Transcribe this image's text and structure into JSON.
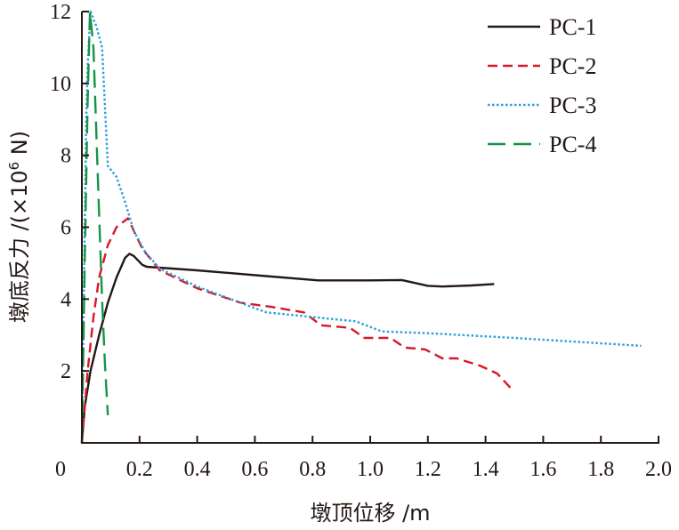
{
  "chart_data": {
    "type": "line",
    "title": "",
    "xlabel": "墩顶位移 /m",
    "ylabel": "墩底反力 /(×10⁶ N)",
    "ylabel_parts": {
      "main": "墩底反力 /(×10",
      "sup": "6",
      "unit": " N)"
    },
    "xlim": [
      0,
      2.0
    ],
    "ylim": [
      0,
      12
    ],
    "xticks": [
      0,
      0.2,
      0.4,
      0.6,
      0.8,
      1.0,
      1.2,
      1.4,
      1.6,
      1.8,
      2.0
    ],
    "xtick_labels": [
      "0",
      "0.2",
      "0.4",
      "0.6",
      "0.8",
      "1.0",
      "1.2",
      "1.4",
      "1.6",
      "1.8",
      "2.0"
    ],
    "yticks": [
      2,
      4,
      6,
      8,
      10,
      12
    ],
    "ytick_labels": [
      "2",
      "4",
      "6",
      "8",
      "10",
      "12"
    ],
    "grid": false,
    "legend_position": "top-right",
    "series": [
      {
        "name": "PC-1",
        "color": "#231815",
        "style": "solid",
        "points": [
          [
            0,
            0
          ],
          [
            0.01,
            1.0
          ],
          [
            0.03,
            2.0
          ],
          [
            0.06,
            3.0
          ],
          [
            0.09,
            3.9
          ],
          [
            0.12,
            4.6
          ],
          [
            0.15,
            5.15
          ],
          [
            0.165,
            5.26
          ],
          [
            0.18,
            5.2
          ],
          [
            0.21,
            4.95
          ],
          [
            0.225,
            4.9
          ],
          [
            0.4,
            4.8
          ],
          [
            0.64,
            4.64
          ],
          [
            0.82,
            4.52
          ],
          [
            1.0,
            4.52
          ],
          [
            1.11,
            4.53
          ],
          [
            1.2,
            4.37
          ],
          [
            1.25,
            4.35
          ],
          [
            1.35,
            4.38
          ],
          [
            1.43,
            4.42
          ]
        ]
      },
      {
        "name": "PC-2",
        "color": "#d7182a",
        "style": "dashed",
        "points": [
          [
            0,
            0
          ],
          [
            0.02,
            2.0
          ],
          [
            0.04,
            3.5
          ],
          [
            0.06,
            4.6
          ],
          [
            0.09,
            5.5
          ],
          [
            0.12,
            6.0
          ],
          [
            0.16,
            6.25
          ],
          [
            0.18,
            5.9
          ],
          [
            0.21,
            5.4
          ],
          [
            0.27,
            4.8
          ],
          [
            0.4,
            4.3
          ],
          [
            0.55,
            3.9
          ],
          [
            0.66,
            3.78
          ],
          [
            0.77,
            3.63
          ],
          [
            0.83,
            3.27
          ],
          [
            0.93,
            3.2
          ],
          [
            0.98,
            2.92
          ],
          [
            1.07,
            2.92
          ],
          [
            1.12,
            2.65
          ],
          [
            1.19,
            2.6
          ],
          [
            1.25,
            2.35
          ],
          [
            1.3,
            2.35
          ],
          [
            1.38,
            2.15
          ],
          [
            1.44,
            1.93
          ],
          [
            1.49,
            1.5
          ]
        ]
      },
      {
        "name": "PC-3",
        "color": "#2e9fd8",
        "style": "dotted",
        "points": [
          [
            0,
            0
          ],
          [
            0.005,
            3.0
          ],
          [
            0.01,
            6.0
          ],
          [
            0.015,
            9.0
          ],
          [
            0.02,
            10.5
          ],
          [
            0.03,
            12.0
          ],
          [
            0.05,
            11.6
          ],
          [
            0.07,
            11.0
          ],
          [
            0.09,
            7.7
          ],
          [
            0.12,
            7.4
          ],
          [
            0.15,
            6.7
          ],
          [
            0.18,
            5.9
          ],
          [
            0.22,
            5.3
          ],
          [
            0.27,
            4.85
          ],
          [
            0.4,
            4.35
          ],
          [
            0.55,
            3.9
          ],
          [
            0.64,
            3.63
          ],
          [
            0.8,
            3.5
          ],
          [
            0.95,
            3.38
          ],
          [
            1.04,
            3.1
          ],
          [
            1.2,
            3.05
          ],
          [
            1.5,
            2.92
          ],
          [
            1.94,
            2.7
          ]
        ]
      },
      {
        "name": "PC-4",
        "color": "#139548",
        "style": "longdash",
        "points": [
          [
            0,
            0
          ],
          [
            0.01,
            5.0
          ],
          [
            0.02,
            9.5
          ],
          [
            0.028,
            12.0
          ],
          [
            0.04,
            11.0
          ],
          [
            0.055,
            7.5
          ],
          [
            0.07,
            4.0
          ],
          [
            0.08,
            2.2
          ],
          [
            0.09,
            0.77
          ]
        ]
      }
    ]
  }
}
